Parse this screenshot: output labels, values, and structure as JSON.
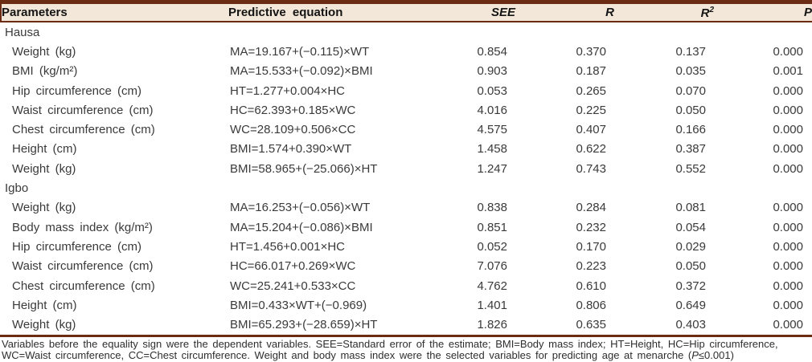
{
  "header": {
    "columns": {
      "parameters": "Parameters",
      "equation": "Predictive equation",
      "see": "SEE",
      "r": "R",
      "r2_base": "R",
      "r2_sup": "2",
      "p": "P"
    }
  },
  "table": {
    "sections": [
      {
        "name": "Hausa",
        "rows": [
          {
            "parameter": "Weight (kg)",
            "equation": "MA=19.167+(−0.115)×WT",
            "see": "0.854",
            "r": "0.370",
            "r2": "0.137",
            "p": "0.000"
          },
          {
            "parameter": "BMI (kg/m²)",
            "equation": "MA=15.533+(−0.092)×BMI",
            "see": "0.903",
            "r": "0.187",
            "r2": "0.035",
            "p": "0.001"
          },
          {
            "parameter": "Hip circumference (cm)",
            "equation": "HT=1.277+0.004×HC",
            "see": "0.053",
            "r": "0.265",
            "r2": "0.070",
            "p": "0.000"
          },
          {
            "parameter": "Waist circumference (cm)",
            "equation": "HC=62.393+0.185×WC",
            "see": "4.016",
            "r": "0.225",
            "r2": "0.050",
            "p": "0.000"
          },
          {
            "parameter": "Chest circumference (cm)",
            "equation": "WC=28.109+0.506×CC",
            "see": "4.575",
            "r": "0.407",
            "r2": "0.166",
            "p": "0.000"
          },
          {
            "parameter": "Height (cm)",
            "equation": "BMI=1.574+0.390×WT",
            "see": "1.458",
            "r": "0.622",
            "r2": "0.387",
            "p": "0.000"
          },
          {
            "parameter": "Weight (kg)",
            "equation": "BMI=58.965+(−25.066)×HT",
            "see": "1.247",
            "r": "0.743",
            "r2": "0.552",
            "p": "0.000"
          }
        ]
      },
      {
        "name": "Igbo",
        "rows": [
          {
            "parameter": "Weight (kg)",
            "equation": "MA=16.253+(−0.056)×WT",
            "see": "0.838",
            "r": "0.284",
            "r2": "0.081",
            "p": "0.000"
          },
          {
            "parameter": "Body mass index (kg/m²)",
            "equation": "MA=15.204+(−0.086)×BMI",
            "see": "0.851",
            "r": "0.232",
            "r2": "0.054",
            "p": "0.000"
          },
          {
            "parameter": "Hip circumference (cm)",
            "equation": "HT=1.456+0.001×HC",
            "see": "0.052",
            "r": "0.170",
            "r2": "0.029",
            "p": "0.000"
          },
          {
            "parameter": "Waist circumference (cm)",
            "equation": "HC=66.017+0.269×WC",
            "see": "7.076",
            "r": "0.223",
            "r2": "0.050",
            "p": "0.000"
          },
          {
            "parameter": "Chest circumference (cm)",
            "equation": "WC=25.241+0.533×CC",
            "see": "4.762",
            "r": "0.610",
            "r2": "0.372",
            "p": "0.000"
          },
          {
            "parameter": "Height (cm)",
            "equation": "BMI=0.433×WT+(−0.969)",
            "see": "1.401",
            "r": "0.806",
            "r2": "0.649",
            "p": "0.000"
          },
          {
            "parameter": "Weight (kg)",
            "equation": "BMI=65.293+(−28.659)×HT",
            "see": "1.826",
            "r": "0.635",
            "r2": "0.403",
            "p": "0.000"
          }
        ]
      }
    ]
  },
  "footnote": {
    "line1": "Variables before the equality sign were the dependent variables. SEE=Standard error of the estimate; BMI=Body mass index; HT=Height, HC=Hip circumference,",
    "line2_prefix": "WC=Waist circumference, CC=Chest circumference. Weight and body mass index were the selected variables for predicting age at menarche (",
    "line2_italic": "P",
    "line2_suffix": "≤0.001)"
  },
  "colors": {
    "accent_brown": "#6b2c13",
    "header_bg": "#f2e7d8"
  }
}
